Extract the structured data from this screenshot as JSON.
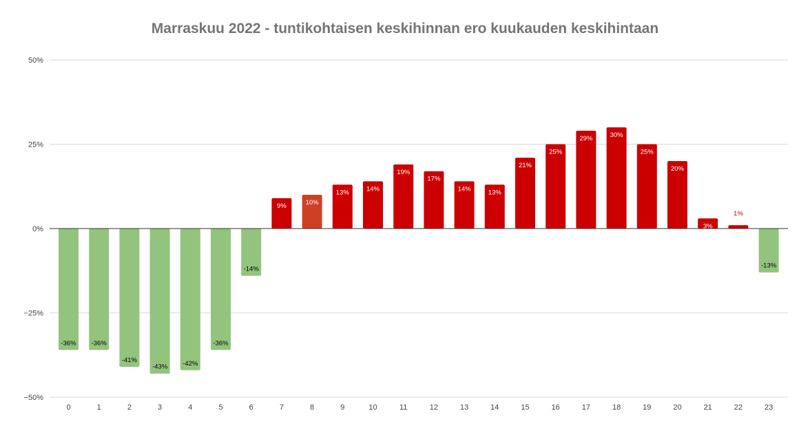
{
  "chart_data": {
    "type": "bar",
    "title": "Marraskuu 2022 - tuntikohtaisen keskihinnan ero kuukauden keskihintaan",
    "xlabel": "",
    "ylabel": "",
    "categories": [
      "0",
      "1",
      "2",
      "3",
      "4",
      "5",
      "6",
      "7",
      "8",
      "9",
      "10",
      "11",
      "12",
      "13",
      "14",
      "15",
      "16",
      "17",
      "18",
      "19",
      "20",
      "21",
      "22",
      "23"
    ],
    "values": [
      -36,
      -36,
      -41,
      -43,
      -42,
      -36,
      -14,
      9,
      10,
      13,
      14,
      19,
      17,
      14,
      13,
      21,
      25,
      29,
      30,
      25,
      20,
      3,
      1,
      -13
    ],
    "data_labels": [
      "-36%",
      "-36%",
      "-41%",
      "-43%",
      "-42%",
      "-36%",
      "-14%",
      "9%",
      "10%",
      "13%",
      "14%",
      "19%",
      "17%",
      "14%",
      "13%",
      "21%",
      "25%",
      "29%",
      "30%",
      "25%",
      "20%",
      "3%",
      "1%",
      "-13%"
    ],
    "ylim": [
      -50,
      50
    ],
    "y_ticks": [
      50,
      25,
      0,
      -25,
      -50
    ],
    "y_tick_labels": [
      "50%",
      "25%",
      "0%",
      "−25%",
      "−50%"
    ],
    "grid": true,
    "legend": "none",
    "colors": {
      "negative": "#93c47d",
      "positive": "#cc0000",
      "highlight": "#cc4125",
      "highlight_index": 8,
      "label_on_negative": "#000000",
      "label_on_positive": "#ffffff",
      "label_outside": "#cc0000",
      "gridline": "#d9d9d9",
      "zero_line": "#333333",
      "title": "#757575"
    }
  }
}
